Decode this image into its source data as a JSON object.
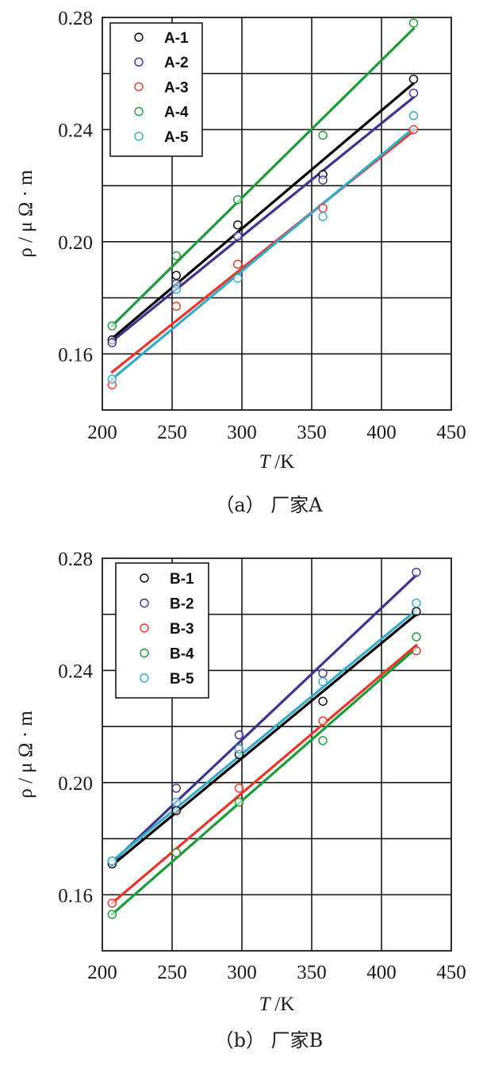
{
  "chart_data": [
    {
      "type": "scatter",
      "caption": "（a） 厂家A",
      "xlabel": "T /K",
      "ylabel": "ρ / μ Ω · m",
      "xlim": [
        200,
        450
      ],
      "ylim": [
        0.14,
        0.28
      ],
      "xticks": [
        200,
        250,
        300,
        350,
        400,
        450
      ],
      "yticks": [
        0.16,
        0.2,
        0.24,
        0.28
      ],
      "ytick_labels": [
        "0.16",
        "0.20",
        "0.24",
        "0.28"
      ],
      "grid": true,
      "legend_position": "top-left",
      "series": [
        {
          "name": "A-1",
          "color": "#000000",
          "x": [
            207,
            253,
            297,
            358,
            423
          ],
          "y": [
            0.165,
            0.188,
            0.206,
            0.224,
            0.258
          ],
          "fit": [
            [
              207,
              0.1655
            ],
            [
              423,
              0.2565
            ]
          ]
        },
        {
          "name": "A-2",
          "color": "#3d3490",
          "x": [
            207,
            253,
            297,
            358,
            423
          ],
          "y": [
            0.164,
            0.185,
            0.202,
            0.222,
            0.253
          ],
          "fit": [
            [
              207,
              0.1645
            ],
            [
              423,
              0.2515
            ]
          ]
        },
        {
          "name": "A-3",
          "color": "#e3392c",
          "x": [
            207,
            253,
            297,
            358,
            423
          ],
          "y": [
            0.149,
            0.177,
            0.192,
            0.212,
            0.24
          ],
          "fit": [
            [
              207,
              0.1535
            ],
            [
              423,
              0.2395
            ]
          ]
        },
        {
          "name": "A-4",
          "color": "#1e9a37",
          "x": [
            207,
            253,
            297,
            358,
            423
          ],
          "y": [
            0.17,
            0.195,
            0.215,
            0.238,
            0.278
          ],
          "fit": [
            [
              207,
              0.17
            ],
            [
              423,
              0.276
            ]
          ]
        },
        {
          "name": "A-5",
          "color": "#39a9c8",
          "x": [
            207,
            253,
            297,
            358,
            423
          ],
          "y": [
            0.151,
            0.183,
            0.187,
            0.209,
            0.245
          ],
          "fit": [
            [
              207,
              0.151
            ],
            [
              423,
              0.2405
            ]
          ]
        }
      ]
    },
    {
      "type": "scatter",
      "caption": "（b） 厂家B",
      "xlabel": "T /K",
      "ylabel": "ρ / μ Ω · m",
      "xlim": [
        200,
        450
      ],
      "ylim": [
        0.14,
        0.28
      ],
      "xticks": [
        200,
        250,
        300,
        350,
        400,
        450
      ],
      "yticks": [
        0.16,
        0.2,
        0.24,
        0.28
      ],
      "ytick_labels": [
        "0.16",
        "0.20",
        "0.24",
        "0.28"
      ],
      "grid": true,
      "legend_position": "top-left",
      "series": [
        {
          "name": "B-1",
          "color": "#000000",
          "x": [
            207,
            253,
            298,
            358,
            425
          ],
          "y": [
            0.171,
            0.19,
            0.21,
            0.229,
            0.261
          ],
          "fit": [
            [
              207,
              0.1705
            ],
            [
              425,
              0.26
            ]
          ]
        },
        {
          "name": "B-2",
          "color": "#3d3490",
          "x": [
            207,
            253,
            298,
            358,
            425
          ],
          "y": [
            0.172,
            0.198,
            0.217,
            0.239,
            0.275
          ],
          "fit": [
            [
              207,
              0.1715
            ],
            [
              425,
              0.274
            ]
          ]
        },
        {
          "name": "B-3",
          "color": "#e3392c",
          "x": [
            207,
            253,
            298,
            358,
            425
          ],
          "y": [
            0.157,
            0.175,
            0.198,
            0.222,
            0.247
          ],
          "fit": [
            [
              207,
              0.157
            ],
            [
              425,
              0.249
            ]
          ]
        },
        {
          "name": "B-4",
          "color": "#1e9a37",
          "x": [
            207,
            253,
            298,
            358,
            425
          ],
          "y": [
            0.153,
            0.175,
            0.193,
            0.215,
            0.252
          ],
          "fit": [
            [
              207,
              0.153
            ],
            [
              425,
              0.248
            ]
          ]
        },
        {
          "name": "B-5",
          "color": "#39a9c8",
          "x": [
            207,
            253,
            298,
            358,
            425
          ],
          "y": [
            0.172,
            0.193,
            0.212,
            0.236,
            0.264
          ],
          "fit": [
            [
              207,
              0.172
            ],
            [
              425,
              0.2615
            ]
          ]
        }
      ]
    }
  ]
}
